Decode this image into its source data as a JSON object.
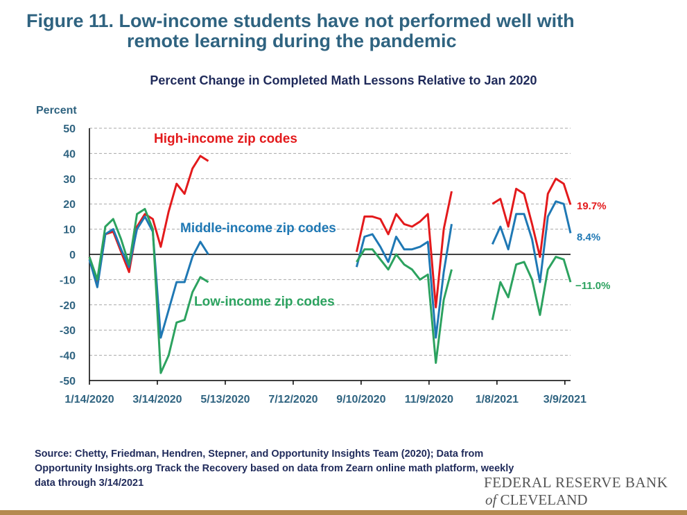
{
  "figure_title_line1": "Figure 11. Low-income students have not performed well with",
  "figure_title_line2": "remote learning during the pandemic",
  "y_unit_label": "Percent",
  "source_note": "Source: Chetty, Friedman, Hendren, Stepner, and Opportunity Insights Team (2020); Data from Opportunity Insights.org Track the Recovery based on data from Zearn online math platform, weekly data through 3/14/2021",
  "logo": {
    "line1": "FEDERAL RESERVE BANK",
    "of": "of",
    "line2": "CLEVELAND"
  },
  "colors": {
    "title": "#2f6380",
    "high": "#e31a1c",
    "middle": "#1f78b4",
    "low": "#2ca25f",
    "grid": "#a6a6a6",
    "rule": "#b58a50"
  },
  "chart_data": {
    "type": "line",
    "title": "Percent Change in Completed Math Lessons Relative to Jan 2020",
    "ylabel": "Percent",
    "ylim": [
      -50,
      50
    ],
    "yticks": [
      50,
      40,
      30,
      20,
      10,
      0,
      -10,
      -20,
      -30,
      -40,
      -50
    ],
    "x_range": [
      "2020-01-14",
      "2021-03-14"
    ],
    "x_ticks": [
      "1/14/2020",
      "3/14/2020",
      "5/13/2020",
      "7/12/2020",
      "9/10/2020",
      "11/9/2020",
      "1/8/2021",
      "3/9/2021"
    ],
    "grid": "horizontal dashed",
    "series": [
      {
        "name": "High-income zip codes",
        "color": "#e31a1c",
        "end_label": "19.7%",
        "segments": [
          [
            [
              "2020-01-14",
              -1
            ],
            [
              "2020-01-21",
              -12
            ],
            [
              "2020-01-28",
              8
            ],
            [
              "2020-02-04",
              9
            ],
            [
              "2020-02-11",
              1
            ],
            [
              "2020-02-18",
              -7
            ],
            [
              "2020-02-25",
              11
            ],
            [
              "2020-03-03",
              16
            ],
            [
              "2020-03-10",
              14
            ],
            [
              "2020-03-17",
              3
            ],
            [
              "2020-03-24",
              17
            ],
            [
              "2020-03-31",
              28
            ],
            [
              "2020-04-07",
              24
            ],
            [
              "2020-04-14",
              34
            ],
            [
              "2020-04-21",
              39
            ],
            [
              "2020-04-28",
              37
            ]
          ],
          [
            [
              "2020-09-06",
              1
            ],
            [
              "2020-09-13",
              15
            ],
            [
              "2020-09-20",
              15
            ],
            [
              "2020-09-27",
              14
            ],
            [
              "2020-10-04",
              8
            ],
            [
              "2020-10-11",
              16
            ],
            [
              "2020-10-18",
              12
            ],
            [
              "2020-10-25",
              11
            ],
            [
              "2020-11-01",
              13
            ],
            [
              "2020-11-08",
              16
            ],
            [
              "2020-11-15",
              -21
            ],
            [
              "2020-11-22",
              10
            ],
            [
              "2020-11-29",
              25
            ]
          ],
          [
            [
              "2021-01-04",
              20
            ],
            [
              "2021-01-11",
              22
            ],
            [
              "2021-01-18",
              11
            ],
            [
              "2021-01-25",
              26
            ],
            [
              "2021-02-01",
              24
            ],
            [
              "2021-02-08",
              12
            ],
            [
              "2021-02-15",
              -1
            ],
            [
              "2021-02-22",
              24
            ],
            [
              "2021-03-01",
              30
            ],
            [
              "2021-03-08",
              28
            ],
            [
              "2021-03-14",
              19.7
            ]
          ]
        ]
      },
      {
        "name": "Middle-income zip codes",
        "color": "#1f78b4",
        "end_label": "8.4%",
        "segments": [
          [
            [
              "2020-01-14",
              -2
            ],
            [
              "2020-01-21",
              -13
            ],
            [
              "2020-01-28",
              8
            ],
            [
              "2020-02-04",
              10
            ],
            [
              "2020-02-11",
              2
            ],
            [
              "2020-02-18",
              -5
            ],
            [
              "2020-02-25",
              10
            ],
            [
              "2020-03-03",
              15
            ],
            [
              "2020-03-10",
              9
            ],
            [
              "2020-03-17",
              -33
            ],
            [
              "2020-03-24",
              -22
            ],
            [
              "2020-03-31",
              -11
            ],
            [
              "2020-04-07",
              -11
            ],
            [
              "2020-04-14",
              -1
            ],
            [
              "2020-04-21",
              5
            ],
            [
              "2020-04-28",
              0
            ]
          ],
          [
            [
              "2020-09-06",
              -5
            ],
            [
              "2020-09-13",
              7
            ],
            [
              "2020-09-20",
              8
            ],
            [
              "2020-09-27",
              3
            ],
            [
              "2020-10-04",
              -3
            ],
            [
              "2020-10-11",
              7
            ],
            [
              "2020-10-18",
              2
            ],
            [
              "2020-10-25",
              2
            ],
            [
              "2020-11-01",
              3
            ],
            [
              "2020-11-08",
              5
            ],
            [
              "2020-11-15",
              -33
            ],
            [
              "2020-11-22",
              -7
            ],
            [
              "2020-11-29",
              12
            ]
          ],
          [
            [
              "2021-01-04",
              4
            ],
            [
              "2021-01-11",
              11
            ],
            [
              "2021-01-18",
              2
            ],
            [
              "2021-01-25",
              16
            ],
            [
              "2021-02-01",
              16
            ],
            [
              "2021-02-08",
              6
            ],
            [
              "2021-02-15",
              -11
            ],
            [
              "2021-02-22",
              15
            ],
            [
              "2021-03-01",
              21
            ],
            [
              "2021-03-08",
              20
            ],
            [
              "2021-03-14",
              8.4
            ]
          ]
        ]
      },
      {
        "name": "Low-income zip codes",
        "color": "#2ca25f",
        "end_label": "−11.0%",
        "segments": [
          [
            [
              "2020-01-14",
              -1
            ],
            [
              "2020-01-21",
              -10
            ],
            [
              "2020-01-28",
              11
            ],
            [
              "2020-02-04",
              14
            ],
            [
              "2020-02-11",
              6
            ],
            [
              "2020-02-18",
              -4
            ],
            [
              "2020-02-25",
              16
            ],
            [
              "2020-03-03",
              18
            ],
            [
              "2020-03-10",
              10
            ],
            [
              "2020-03-17",
              -47
            ],
            [
              "2020-03-24",
              -40
            ],
            [
              "2020-03-31",
              -27
            ],
            [
              "2020-04-07",
              -26
            ],
            [
              "2020-04-14",
              -15
            ],
            [
              "2020-04-21",
              -9
            ],
            [
              "2020-04-28",
              -11
            ]
          ],
          [
            [
              "2020-09-06",
              -3
            ],
            [
              "2020-09-13",
              2
            ],
            [
              "2020-09-20",
              2
            ],
            [
              "2020-09-27",
              -2
            ],
            [
              "2020-10-04",
              -6
            ],
            [
              "2020-10-11",
              0
            ],
            [
              "2020-10-18",
              -4
            ],
            [
              "2020-10-25",
              -6
            ],
            [
              "2020-11-01",
              -10
            ],
            [
              "2020-11-08",
              -8
            ],
            [
              "2020-11-15",
              -43
            ],
            [
              "2020-11-22",
              -18
            ],
            [
              "2020-11-29",
              -6
            ]
          ],
          [
            [
              "2021-01-04",
              -26
            ],
            [
              "2021-01-11",
              -11
            ],
            [
              "2021-01-18",
              -17
            ],
            [
              "2021-01-25",
              -4
            ],
            [
              "2021-02-01",
              -3
            ],
            [
              "2021-02-08",
              -10
            ],
            [
              "2021-02-15",
              -24
            ],
            [
              "2021-02-22",
              -6
            ],
            [
              "2021-03-01",
              -1
            ],
            [
              "2021-03-08",
              -2
            ],
            [
              "2021-03-14",
              -11.0
            ]
          ]
        ]
      }
    ]
  }
}
